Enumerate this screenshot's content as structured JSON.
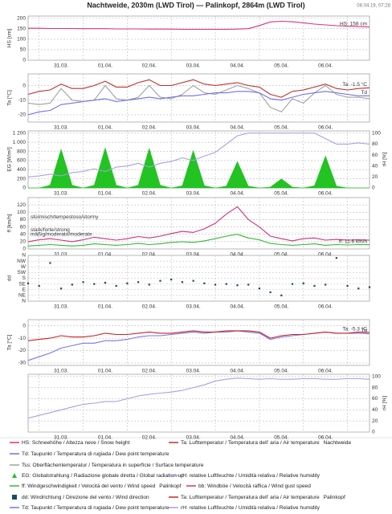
{
  "title": "Nachtweide, 2030m (LWD Tirol) — Palinkopf, 2864m (LWD Tirol)",
  "timestamp": "08.04.19, 07:28",
  "chart_data": [
    {
      "type": "line",
      "ylabel": "HS [cm]",
      "ylabel_color": "#d0306f",
      "grid": true,
      "categories": [
        null,
        null,
        null,
        "31.03.",
        null,
        null,
        null,
        "01.04.",
        null,
        null,
        null,
        "02.04.",
        null,
        null,
        null,
        "03.04.",
        null,
        null,
        null,
        "04.04.",
        null,
        null,
        null,
        "05.04.",
        null,
        null,
        null,
        "06.04.",
        null,
        null,
        null,
        null
      ],
      "ylim": [
        0,
        210
      ],
      "yticks": [
        0,
        50,
        100,
        150,
        200
      ],
      "series": [
        {
          "color": "#e0307a",
          "end_label": "HS: 158 cm",
          "values": [
            152,
            152,
            151,
            151,
            151,
            150,
            150,
            150,
            149,
            149,
            149,
            148,
            148,
            148,
            147,
            147,
            147,
            147,
            147,
            148,
            150,
            165,
            182,
            185,
            183,
            178,
            172,
            168,
            164,
            162,
            160,
            158
          ]
        }
      ]
    },
    {
      "type": "line",
      "ylabel": "Ta [°C]",
      "ylabel_color": "#c0302c",
      "grid": true,
      "categories": [
        null,
        null,
        null,
        "31.03.",
        null,
        null,
        null,
        "01.04.",
        null,
        null,
        null,
        "02.04.",
        null,
        null,
        null,
        "03.04.",
        null,
        null,
        null,
        "04.04.",
        null,
        null,
        null,
        "05.04.",
        null,
        null,
        null,
        "06.04.",
        null,
        null,
        null,
        null
      ],
      "ylim": [
        -25,
        8
      ],
      "yticks": [
        -20,
        -10,
        0
      ],
      "series": [
        {
          "color": "#a0a0a0",
          "values": [
            -12,
            -13,
            -12,
            -2,
            -10,
            -11,
            -10,
            0,
            -9,
            -10,
            -8,
            0,
            -8,
            -9,
            -6,
            0,
            -5,
            -6,
            -3,
            0,
            -2,
            -5,
            -15,
            -18,
            -9,
            -12,
            -5,
            0,
            -6,
            -8,
            -8,
            -9
          ]
        },
        {
          "color": "#6f6ff0",
          "end_label": "Td",
          "values": [
            -20,
            -18,
            -17,
            -13,
            -12,
            -11,
            -10,
            -9,
            -11,
            -10,
            -9,
            -8,
            -9,
            -8,
            -7,
            -7,
            -6,
            -5,
            -5,
            -4,
            -4,
            -5,
            -9,
            -10,
            -8,
            -6,
            -5,
            -4,
            -5,
            -6,
            -7,
            -7
          ]
        },
        {
          "color": "#c0302c",
          "end_label": "Ta: -1.5 °C",
          "values": [
            -6,
            -4,
            -3,
            1,
            -2,
            -2,
            0,
            3,
            -1,
            -1,
            2,
            4,
            0,
            0,
            2,
            4,
            1,
            0,
            1,
            2,
            0,
            -1,
            -6,
            -8,
            -4,
            -3,
            -1,
            1,
            -2,
            -3,
            -2,
            -1.5
          ]
        }
      ]
    },
    {
      "type": "line",
      "ylabel": "EG [W/m²]",
      "ylabel_color": "#22aa22",
      "y2label": "rH [%]",
      "y2label_color": "#9f96dc",
      "grid": true,
      "categories": [
        null,
        null,
        null,
        "31.03.",
        null,
        null,
        null,
        "01.04.",
        null,
        null,
        null,
        "02.04.",
        null,
        null,
        null,
        "03.04.",
        null,
        null,
        null,
        "04.04.",
        null,
        null,
        null,
        "05.04.",
        null,
        null,
        null,
        "06.04.",
        null,
        null,
        null,
        null
      ],
      "ylim": [
        0,
        1250
      ],
      "yticks": [
        0,
        200,
        400,
        600,
        800,
        {
          "value": 1000,
          "label": "1 000"
        },
        {
          "value": 1200,
          "label": "1 200"
        }
      ],
      "y2lim": [
        0,
        104
      ],
      "y2ticks": [
        0,
        20,
        40,
        60,
        80,
        100
      ],
      "series": [
        {
          "type": "area",
          "color": "#22c322",
          "values": [
            0,
            0,
            60,
            850,
            60,
            0,
            60,
            880,
            60,
            0,
            60,
            870,
            60,
            0,
            50,
            820,
            50,
            0,
            40,
            580,
            40,
            0,
            20,
            200,
            20,
            0,
            50,
            700,
            40,
            0,
            0,
            0
          ]
        },
        {
          "color": "#a9a0e0",
          "axis": "y2",
          "values": [
            20,
            22,
            25,
            22,
            28,
            30,
            35,
            30,
            38,
            40,
            45,
            38,
            45,
            48,
            55,
            50,
            58,
            65,
            80,
            95,
            100,
            100,
            100,
            100,
            100,
            100,
            100,
            90,
            80,
            80,
            82,
            80
          ]
        }
      ]
    },
    {
      "type": "line",
      "ylabel": "ff [km/h]",
      "ylabel_color": "#c0302c",
      "grid": true,
      "categories": [
        null,
        null,
        null,
        "31.03.",
        null,
        null,
        null,
        "01.04.",
        null,
        null,
        null,
        "02.04.",
        null,
        null,
        null,
        "03.04.",
        null,
        null,
        null,
        "04.04.",
        null,
        null,
        null,
        "05.04.",
        null,
        null,
        null,
        "06.04.",
        null,
        null,
        null,
        null
      ],
      "ylim": [
        0,
        140
      ],
      "yticks": [
        0,
        20,
        40,
        60,
        80,
        100,
        120
      ],
      "thresholds": [
        {
          "value": 80,
          "label": "stürmisch/tempestoso/stormy"
        },
        {
          "value": 45,
          "label": "stark/forte/strong"
        },
        {
          "value": 33,
          "label": "mäßig/moderato/moderate"
        }
      ],
      "series": [
        {
          "color": "#d0307a",
          "values": [
            20,
            25,
            28,
            24,
            20,
            25,
            32,
            28,
            24,
            28,
            34,
            30,
            35,
            42,
            48,
            45,
            55,
            70,
            95,
            115,
            80,
            60,
            35,
            28,
            22,
            28,
            30,
            24,
            26,
            24,
            25,
            24
          ]
        },
        {
          "color": "#33bb33",
          "end_label": "ff: 11.6 km/h",
          "values": [
            8,
            10,
            12,
            10,
            8,
            10,
            14,
            12,
            10,
            12,
            15,
            12,
            14,
            18,
            20,
            18,
            22,
            28,
            35,
            40,
            30,
            25,
            15,
            12,
            10,
            12,
            14,
            10,
            12,
            11,
            12,
            11.6
          ]
        }
      ]
    },
    {
      "type": "scatter",
      "ylabel": "dd",
      "ylabel_color": "#1f4a60",
      "grid": true,
      "categories": [
        null,
        null,
        null,
        "31.03.",
        null,
        null,
        null,
        "01.04.",
        null,
        null,
        null,
        "02.04.",
        null,
        null,
        null,
        "03.04.",
        null,
        null,
        null,
        "04.04.",
        null,
        null,
        null,
        "05.04.",
        null,
        null,
        null,
        "06.04.",
        null,
        null,
        null,
        null
      ],
      "ylim": [
        0,
        360
      ],
      "yticks": [
        {
          "value": 0,
          "label": "N"
        },
        {
          "value": 45,
          "label": "NE"
        },
        {
          "value": 90,
          "label": "E"
        },
        {
          "value": 135,
          "label": "SE"
        },
        {
          "value": 180,
          "label": "S"
        },
        {
          "value": 225,
          "label": "SW"
        },
        {
          "value": 270,
          "label": "W"
        },
        {
          "value": 315,
          "label": "NW"
        },
        {
          "value": 360,
          "label": "N"
        }
      ],
      "series": [
        {
          "color": "#1f4a60",
          "values": [
            140,
            120,
            300,
            100,
            130,
            150,
            135,
            145,
            120,
            140,
            150,
            130,
            160,
            170,
            150,
            160,
            140,
            130,
            135,
            125,
            130,
            100,
            70,
            45,
            135,
            140,
            120,
            130,
            340,
            120,
            100,
            110
          ]
        }
      ]
    },
    {
      "type": "line",
      "ylabel": "Ta [°C]",
      "ylabel_color": "#c0302c",
      "grid": true,
      "categories": [
        null,
        null,
        null,
        "31.03.",
        null,
        null,
        null,
        "01.04.",
        null,
        null,
        null,
        "02.04.",
        null,
        null,
        null,
        "03.04.",
        null,
        null,
        null,
        "04.04.",
        null,
        null,
        null,
        "05.04.",
        null,
        null,
        null,
        "06.04.",
        null,
        null,
        null,
        null
      ],
      "ylim": [
        -32,
        5
      ],
      "yticks": [
        -30,
        -20,
        -10,
        0
      ],
      "series": [
        {
          "color": "#7777ee",
          "end_label": "Td",
          "values": [
            -28,
            -25,
            -22,
            -18,
            -16,
            -14,
            -14,
            -12,
            -12,
            -11,
            -9,
            -8,
            -8,
            -7,
            -6,
            -5,
            -6,
            -5,
            -5,
            -4,
            -5,
            -6,
            -11,
            -9,
            -8,
            -7,
            -6,
            -5,
            -6,
            -6,
            -6,
            -6.5
          ]
        },
        {
          "color": "#cc2222",
          "end_label": "Ta: -5.3 °C",
          "values": [
            -12,
            -11,
            -10,
            -8,
            -9,
            -9,
            -8,
            -6,
            -7,
            -7,
            -6,
            -5,
            -6,
            -6,
            -5,
            -4,
            -5,
            -5,
            -4,
            -4,
            -4,
            -5,
            -10,
            -8,
            -7,
            -7,
            -6,
            -5,
            -6,
            -6,
            -5,
            -5.3
          ]
        }
      ]
    },
    {
      "type": "line",
      "y2label": "rH [%]",
      "y2label_color": "#9f96dc",
      "grid": true,
      "categories": [
        null,
        null,
        null,
        "31.03.",
        null,
        null,
        null,
        "01.04.",
        null,
        null,
        null,
        "02.04.",
        null,
        null,
        null,
        "03.04.",
        null,
        null,
        null,
        "04.04.",
        null,
        null,
        null,
        "05.04.",
        null,
        null,
        null,
        "06.04.",
        null,
        null,
        null,
        null
      ],
      "y2lim": [
        0,
        104
      ],
      "y2ticks": [
        0,
        20,
        40,
        60,
        80,
        100
      ],
      "series": [
        {
          "color": "#a9a0e0",
          "axis": "y2",
          "values": [
            25,
            30,
            35,
            40,
            45,
            50,
            52,
            55,
            55,
            60,
            65,
            68,
            70,
            72,
            75,
            80,
            85,
            92,
            95,
            97,
            96,
            95,
            96,
            95,
            95,
            96,
            96,
            95,
            95,
            96,
            96,
            95
          ]
        }
      ]
    }
  ],
  "legend": [
    {
      "text": "HS: Schneehöhe / Altezza neve / Snow height",
      "color": "#e0307a",
      "marker": "line"
    },
    {
      "text": "Ta: Lufttemperatur / Temperatura dell' aria / Air temperature",
      "color": "#c0302c",
      "marker": "line",
      "station": "Nachtweide"
    },
    {
      "text": "Td: Taupunkt / Temperatura di rugiada / Dew point temperature",
      "color": "#6f6ff0",
      "marker": "line"
    },
    {
      "text": "Tss: Oberflächentemperatur / Temperatura in superficie / Surface temperature",
      "color": "#a0a0a0",
      "marker": "line"
    },
    {
      "text": "EG: Globalstrahlung / Radiazione globale diretta / Global radiation up",
      "color": "#22c322",
      "marker": "triangle"
    },
    {
      "text": "rH: relative Luftfeuchte / Umidità relativa / Relative humidity",
      "color": "#a9a0e0",
      "marker": "line"
    },
    {
      "text": "ff: Windgeschwindigkeit / Velocità del vento / Wind speed",
      "color": "#33bb33",
      "marker": "line",
      "station": "Palinkopf"
    },
    {
      "text": "bb: Windböe / Velocità raffica / Wind gust speed",
      "color": "#d0307a",
      "marker": "line"
    },
    {
      "text": "dd: Windrichtung / Direzione del vento / Wind direction",
      "color": "#1f4a60",
      "marker": "square"
    },
    {
      "text": "Ta: Lufttemperatur / Temperatura dell' aria / Air temperature",
      "color": "#cc2222",
      "marker": "line",
      "station": "Palinkopf"
    },
    {
      "text": "Td: Taupunkt / Temperatura di rugiada / Dew point temperature",
      "color": "#7777ee",
      "marker": "line"
    },
    {
      "text": "rH: relative Luftfeuchte / Umidità relativa / Relative humidity",
      "color": "#a9a0e0",
      "marker": "line"
    }
  ]
}
